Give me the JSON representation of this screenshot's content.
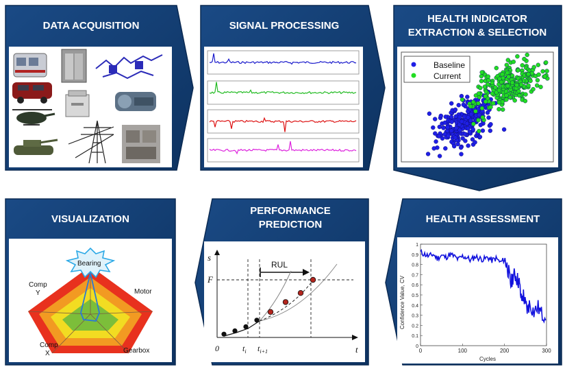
{
  "stages": {
    "acquisition": {
      "title": "DATA ACQUISITION"
    },
    "processing": {
      "title": "SIGNAL PROCESSING"
    },
    "extraction": {
      "title_line1": "HEALTH INDICATOR",
      "title_line2": "EXTRACTION & SELECTION"
    },
    "assessment": {
      "title": "HEALTH ASSESSMENT"
    },
    "prediction": {
      "title_line1": "PERFORMANCE",
      "title_line2": "PREDICTION"
    },
    "visualization": {
      "title": "VISUALIZATION"
    }
  },
  "colors": {
    "panel": "#123c6e",
    "panel_dark": "#0c2d55",
    "baseline": "#1f1fe6",
    "current": "#22dd22",
    "signals": [
      "#1a1acc",
      "#22bb22",
      "#dd1111",
      "#dd22dd"
    ]
  },
  "scatter": {
    "legend": [
      {
        "label": "Baseline",
        "color": "#1f1fe6"
      },
      {
        "label": "Current",
        "color": "#22dd22"
      }
    ]
  },
  "chart_data": [
    {
      "type": "scatter",
      "series": [
        {
          "name": "Baseline",
          "center": [
            0.4,
            0.35
          ],
          "spread": [
            0.1,
            0.12
          ]
        },
        {
          "name": "Current",
          "center": [
            0.7,
            0.7
          ],
          "spread": [
            0.12,
            0.12
          ]
        }
      ]
    },
    {
      "type": "line",
      "xlabel": "Cycles",
      "ylabel": "Confidence Value, CV",
      "xlim": [
        0,
        300
      ],
      "ylim": [
        0,
        1
      ],
      "xticks": [
        "0",
        "100",
        "200",
        "300"
      ],
      "yticks": [
        "0",
        "0.1",
        "0.2",
        "0.3",
        "0.4",
        "0.5",
        "0.6",
        "0.7",
        "0.8",
        "0.9",
        "1"
      ],
      "x": [
        0,
        10,
        20,
        30,
        40,
        50,
        60,
        70,
        80,
        90,
        100,
        110,
        120,
        130,
        140,
        150,
        160,
        170,
        180,
        190,
        200,
        205,
        210,
        215,
        220,
        225,
        230,
        235,
        240,
        245,
        250,
        255,
        260,
        270,
        280,
        290,
        300
      ],
      "y": [
        0.92,
        0.9,
        0.88,
        0.9,
        0.86,
        0.89,
        0.87,
        0.9,
        0.88,
        0.85,
        0.88,
        0.87,
        0.84,
        0.88,
        0.86,
        0.85,
        0.87,
        0.84,
        0.86,
        0.82,
        0.85,
        0.8,
        0.72,
        0.6,
        0.68,
        0.7,
        0.66,
        0.62,
        0.45,
        0.5,
        0.4,
        0.35,
        0.42,
        0.33,
        0.38,
        0.3,
        0.32
      ]
    },
    {
      "type": "line",
      "xlabel": "t",
      "ylabel": "s",
      "threshold_label": "F",
      "rul_label": "RUL",
      "ticks": {
        "origin": "0",
        "ti": "t",
        "ti_sub": "i",
        "ti1": "t",
        "ti1_sub": "i+1"
      },
      "points": [
        [
          0.05,
          0.04
        ],
        [
          0.13,
          0.08
        ],
        [
          0.21,
          0.13
        ],
        [
          0.29,
          0.21
        ],
        [
          0.39,
          0.31
        ],
        [
          0.5,
          0.43
        ],
        [
          0.61,
          0.54
        ],
        [
          0.7,
          0.7
        ]
      ],
      "threshold": 0.7
    },
    {
      "type": "radar",
      "axes": [
        "Bearing",
        "Motor",
        "Gearbox",
        "Comp X",
        "Comp Y"
      ],
      "levels": 4
    }
  ],
  "visual": {
    "vehicle_icons": [
      "bus-icon",
      "elevator-icon",
      "plant-icon",
      "van-icon",
      "copier-icon",
      "engine-icon",
      "helicopter-icon",
      "tower-icon",
      "tank-icon",
      "machine-icon"
    ]
  }
}
